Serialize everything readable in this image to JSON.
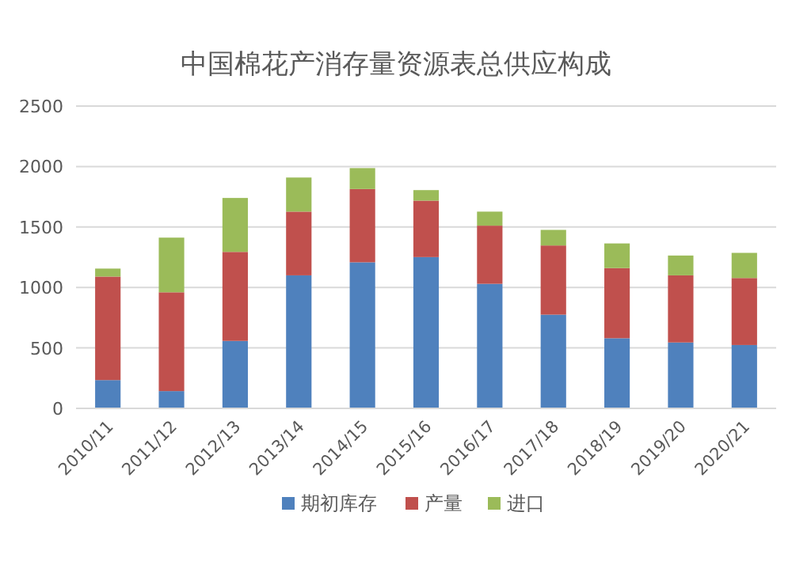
{
  "chart_data": {
    "type": "bar",
    "title": "中国棉花产消存量资源表总供应构成",
    "categories": [
      "2010/11",
      "2011/12",
      "2012/13",
      "2013/14",
      "2014/15",
      "2015/16",
      "2016/17",
      "2017/18",
      "2018/19",
      "2019/20",
      "2020/21"
    ],
    "stacked": true,
    "series": [
      {
        "name": "期初库存",
        "color": "#4f81bd",
        "values": [
          234,
          143,
          558,
          1100,
          1208,
          1251,
          1030,
          775,
          580,
          545,
          524
        ]
      },
      {
        "name": "产量",
        "color": "#c0504d",
        "values": [
          856,
          817,
          736,
          527,
          606,
          467,
          481,
          572,
          580,
          555,
          554
        ]
      },
      {
        "name": "进口",
        "color": "#9bbb59",
        "values": [
          66,
          452,
          446,
          282,
          173,
          87,
          116,
          129,
          204,
          164,
          208
        ]
      }
    ],
    "ylim": [
      0,
      2500
    ],
    "yticks": [
      0,
      500,
      1000,
      1500,
      2000,
      2500
    ],
    "grid": "y",
    "legend": "bottom"
  }
}
